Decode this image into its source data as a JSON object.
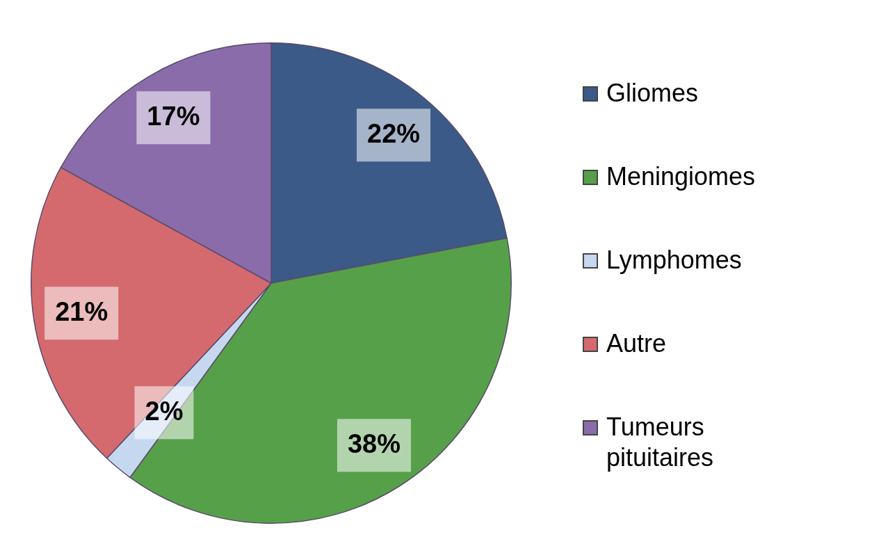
{
  "chart_data": {
    "type": "pie",
    "categories": [
      "Gliomes",
      "Meningiomes",
      "Lymphomes",
      "Autre",
      "Tumeurs pituitaires"
    ],
    "values": [
      22,
      38,
      2,
      21,
      17
    ],
    "colors": [
      "#3b5a88",
      "#56a04a",
      "#c6d8f0",
      "#d46a6e",
      "#8a6cab"
    ],
    "value_labels": [
      "22%",
      "38%",
      "2%",
      "21%",
      "17%"
    ],
    "legend": "right"
  }
}
